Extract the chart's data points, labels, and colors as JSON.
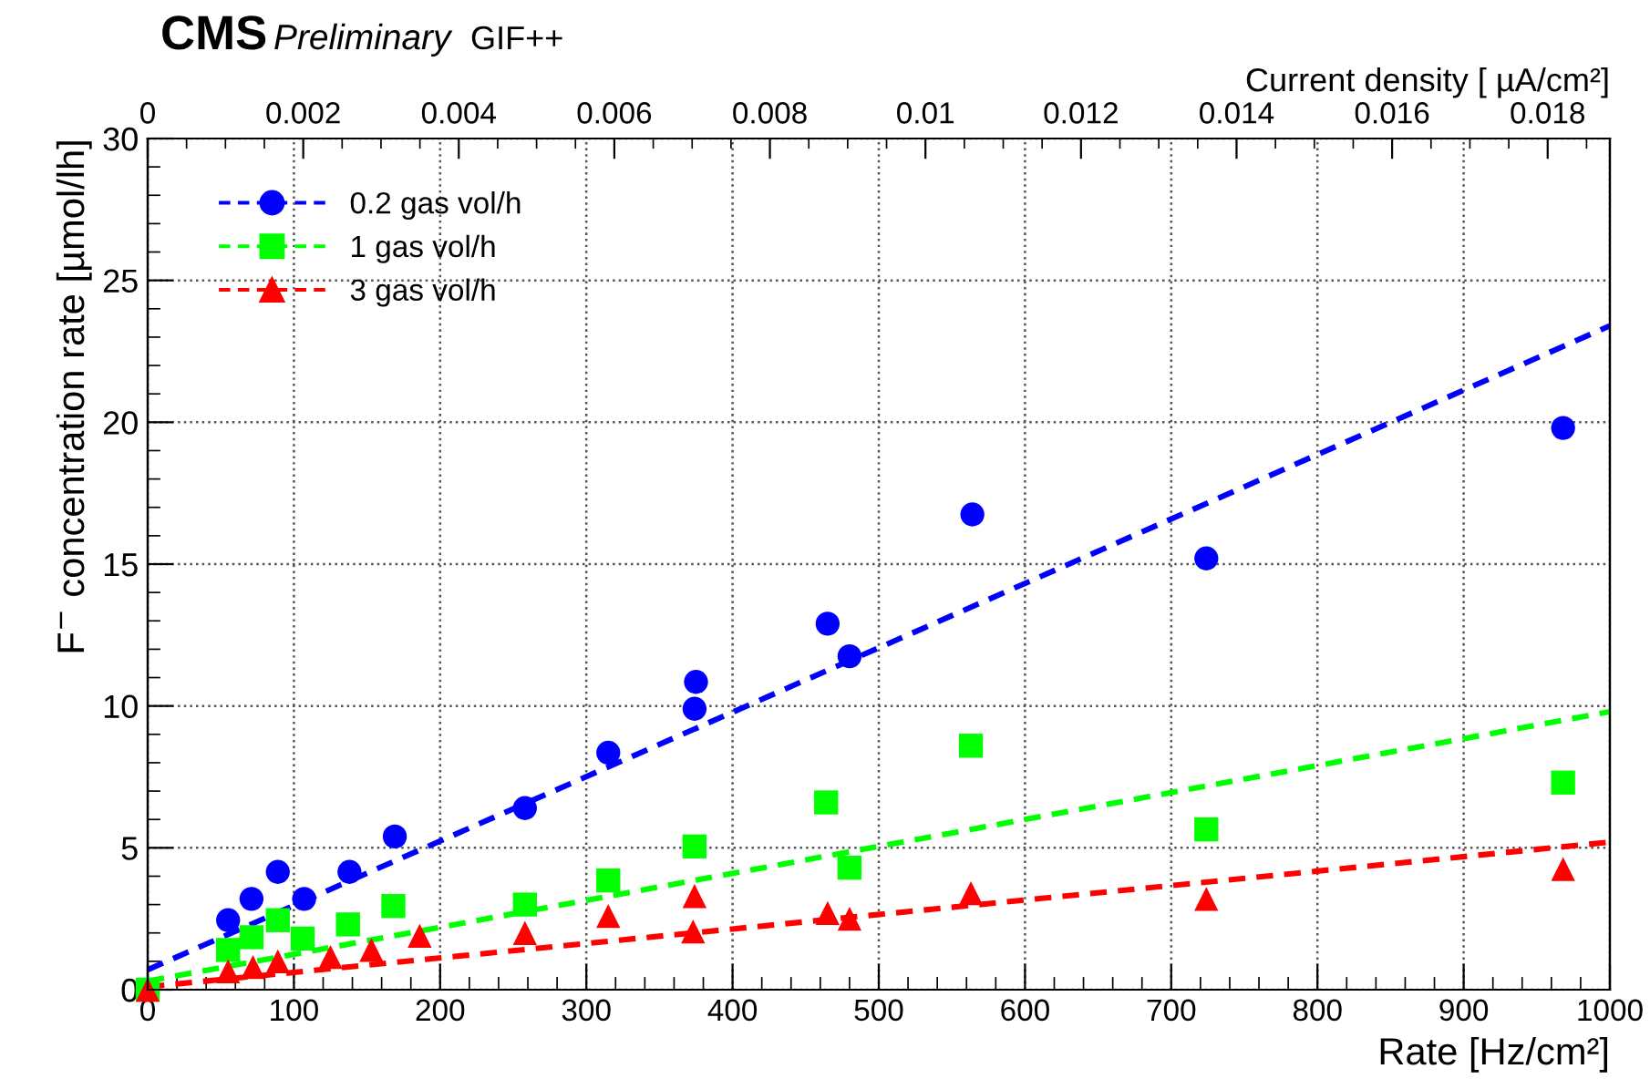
{
  "chart_data": {
    "type": "scatter",
    "xlabel": "Rate [Hz/cm²]",
    "ylabel": "F$^{−}$ concentration rate [µmol/lh]",
    "x2label": "Current density [ µA/cm²]",
    "annotations": [
      "CMS",
      "Preliminary",
      "GIF++"
    ],
    "xlim": [
      0,
      1000
    ],
    "xticks": [
      0,
      100,
      200,
      300,
      400,
      500,
      600,
      700,
      800,
      900,
      1000
    ],
    "ylim": [
      0,
      30
    ],
    "yticks": [
      0,
      5,
      10,
      15,
      20,
      25,
      30
    ],
    "x2lim": [
      0,
      0.0188
    ],
    "x2ticks": [
      0,
      0.002,
      0.004,
      0.006,
      0.008,
      0.01,
      0.012,
      0.014,
      0.016,
      0.018
    ],
    "grid": true,
    "legend": "top left",
    "series": [
      {
        "name": "0.2 gas vol/h",
        "marker": "circle",
        "color": "#0000ff",
        "x": [
          55,
          71,
          89,
          107,
          138,
          169,
          258,
          315,
          374,
          375,
          465,
          480,
          564,
          724,
          968
        ],
        "values": [
          2.45,
          3.2,
          4.15,
          3.2,
          4.15,
          5.4,
          6.4,
          8.35,
          9.9,
          10.85,
          12.9,
          11.75,
          16.75,
          15.2,
          19.8
        ]
      },
      {
        "name": "1 gas vol/h",
        "marker": "square",
        "color": "#00ff00",
        "x": [
          0,
          55,
          71,
          89,
          106,
          137,
          168,
          258,
          315,
          374,
          464,
          480,
          563,
          724,
          968
        ],
        "values": [
          0,
          1.4,
          1.85,
          2.45,
          1.8,
          2.3,
          2.95,
          3.0,
          3.85,
          5.05,
          6.6,
          4.3,
          8.6,
          5.65,
          7.3
        ]
      },
      {
        "name": "3 gas vol/h",
        "marker": "triangle",
        "color": "#ff0000",
        "x": [
          0,
          55,
          72,
          89,
          125,
          153,
          186,
          258,
          315,
          373,
          374,
          465,
          480,
          563,
          724,
          968
        ],
        "values": [
          0,
          0.65,
          0.8,
          1.0,
          1.15,
          1.4,
          1.9,
          2.0,
          2.6,
          2.05,
          3.3,
          2.7,
          2.5,
          3.4,
          3.2,
          4.25
        ]
      },
      {
        "type": "line",
        "line_style": "dashed",
        "color": "#0000ff",
        "x": [
          0,
          1000
        ],
        "values": [
          0.7,
          23.4
        ]
      },
      {
        "type": "line",
        "line_style": "dashed",
        "color": "#00ff00",
        "x": [
          0,
          1000
        ],
        "values": [
          0.3,
          9.8
        ]
      },
      {
        "type": "line",
        "line_style": "dashed",
        "color": "#ff0000",
        "x": [
          0,
          1000
        ],
        "values": [
          0.1,
          5.2
        ]
      }
    ]
  }
}
